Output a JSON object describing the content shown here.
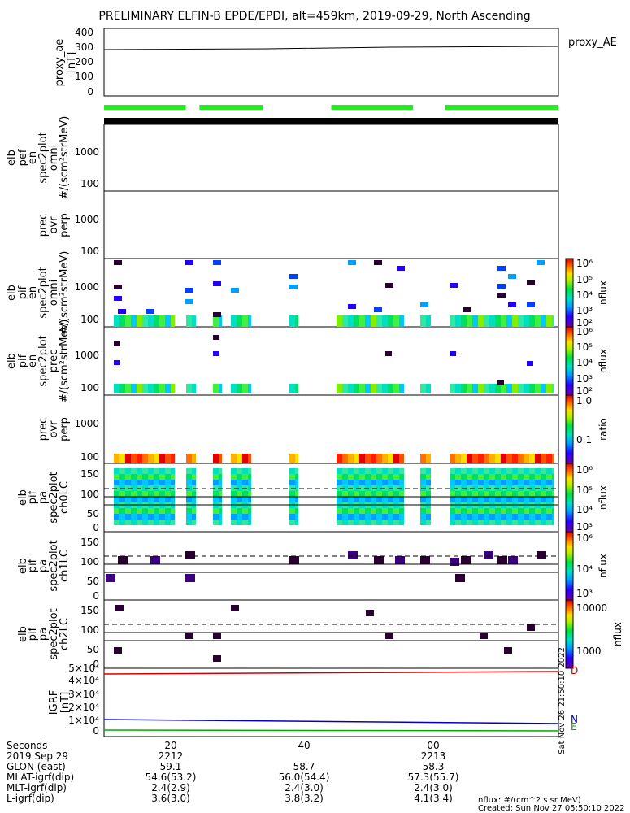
{
  "title": "PRELIMINARY ELFIN-B EPDE/EPDI, alt=459km, 2019-09-29, North Ascending",
  "chart_data": {
    "type": "heatmap",
    "panels": [
      {
        "id": "proxy_ae",
        "ylabel": "proxy_ae [nT]",
        "legend": "proxy_AE",
        "type": "line",
        "ylim": [
          0,
          400
        ],
        "yticks": [
          0,
          100,
          200,
          300,
          400
        ],
        "series": [
          {
            "x": [
              0,
              0.5,
              1
            ],
            "y": [
              283,
              290,
              295
            ]
          }
        ]
      },
      {
        "id": "ae_bar",
        "type": "bar-indicator",
        "color": "#22ee22",
        "segments": [
          [
            0,
            0.18
          ],
          [
            0.21,
            0.35
          ],
          [
            0.5,
            0.68
          ],
          [
            0.75,
            1.0
          ]
        ]
      },
      {
        "id": "elb_pef_en",
        "ylabel": [
          "elb",
          "pef",
          "en",
          "spec2plot",
          "omni",
          "#/(scm²strMeV)"
        ],
        "yscale": "log",
        "yticks": [
          "1000",
          "100"
        ]
      },
      {
        "id": "prec_ovr_perp_e",
        "ylabel": [
          "prec",
          "ovr",
          "perp"
        ],
        "yscale": "log",
        "yticks": [
          "1000",
          "100"
        ]
      },
      {
        "id": "elb_pif_en_omni",
        "ylabel": [
          "elb",
          "pif",
          "en",
          "spec2plot",
          "omni",
          "#/(scm²strMeV)"
        ],
        "yscale": "log",
        "yticks": [
          "1000",
          "100"
        ],
        "colorbar": {
          "label": "nflux",
          "ticks": [
            "10⁶",
            "10⁵",
            "10⁴",
            "10³",
            "10²"
          ]
        }
      },
      {
        "id": "elb_pif_en_prec",
        "ylabel": [
          "elb",
          "pif",
          "en",
          "spec2plot",
          "prec",
          "#/(scm²strMeV)"
        ],
        "yscale": "log",
        "yticks": [
          "1000",
          "100"
        ],
        "colorbar": {
          "label": "nflux",
          "ticks": [
            "10⁶",
            "10⁵",
            "10⁴",
            "10³",
            "10²"
          ]
        }
      },
      {
        "id": "prec_ovr_perp_i",
        "ylabel": [
          "prec",
          "ovr",
          "perp"
        ],
        "yscale": "log",
        "yticks": [
          "1000",
          "100"
        ],
        "colorbar": {
          "label": "ratio",
          "ticks": [
            "1.0",
            "0.1"
          ]
        }
      },
      {
        "id": "elb_pif_pa_ch0",
        "ylabel": [
          "elb",
          "pif",
          "pa",
          "spec2plot",
          "ch0LC"
        ],
        "ylim": [
          0,
          180
        ],
        "yticks": [
          "150",
          "100",
          "50",
          "0"
        ],
        "colorbar": {
          "label": "nflux",
          "ticks": [
            "10⁶",
            "10⁵",
            "10⁴",
            "10³"
          ]
        }
      },
      {
        "id": "elb_pif_pa_ch1",
        "ylabel": [
          "elb",
          "pif",
          "pa",
          "spec2plot",
          "ch1LC"
        ],
        "ylim": [
          0,
          180
        ],
        "yticks": [
          "150",
          "100",
          "50",
          "0"
        ],
        "colorbar": {
          "label": "nflux",
          "ticks": [
            "10⁶",
            "10⁴",
            "10³"
          ]
        }
      },
      {
        "id": "elb_pif_pa_ch2",
        "ylabel": [
          "elb",
          "pif",
          "pa",
          "spec2plot",
          "ch2LC"
        ],
        "ylim": [
          0,
          180
        ],
        "yticks": [
          "150",
          "100",
          "50",
          "0"
        ],
        "colorbar": {
          "label": "nflux",
          "ticks": [
            "10000",
            "1000"
          ]
        }
      },
      {
        "id": "igrf",
        "ylabel": "IGRF [nT]",
        "type": "line",
        "yticklabels": [
          "5×10⁴",
          "4×10⁴",
          "3×10⁴",
          "2×10⁴",
          "1×10⁴",
          "0"
        ],
        "series": [
          {
            "name": "D",
            "color": "#cc0000",
            "y": [
              48000,
              48500
            ]
          },
          {
            "name": "N",
            "color": "#0000cc",
            "y": [
              12000,
              9000
            ]
          },
          {
            "name": "E",
            "color": "#00aa00",
            "y": [
              500,
              300
            ]
          }
        ]
      }
    ],
    "x_axis": {
      "rows": [
        {
          "label": "Seconds",
          "values": [
            "20",
            "40",
            "00"
          ]
        },
        {
          "label": "2019 Sep 29",
          "values": [
            "2212",
            "",
            "2213"
          ]
        },
        {
          "label": "GLON (east)",
          "values": [
            "59.1",
            "58.7",
            "58.3"
          ]
        },
        {
          "label": "MLAT-igrf(dip)",
          "values": [
            "54.6(53.2)",
            "56.0(54.4)",
            "57.3(55.7)"
          ]
        },
        {
          "label": "MLT-igrf(dip)",
          "values": [
            "2.4(2.9)",
            "2.4(3.0)",
            "2.4(3.0)"
          ]
        },
        {
          "label": "L-igrf(dip)",
          "values": [
            "3.6(3.0)",
            "3.8(3.2)",
            "4.1(3.4)"
          ]
        }
      ]
    }
  },
  "footer": {
    "units": "nflux: #/(cm^2 s sr MeV)",
    "created": "Created: Sun Nov 27 05:50:10 2022",
    "side_stamp": "Sat Nov 26 21:50:10 2022"
  }
}
